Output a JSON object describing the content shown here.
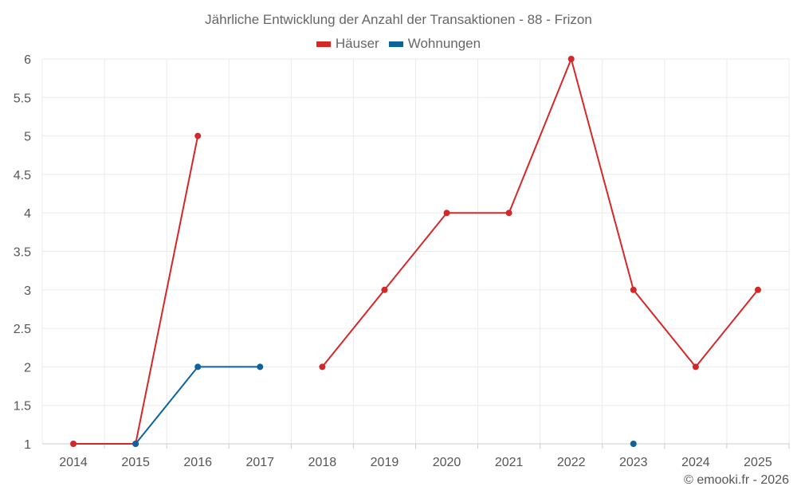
{
  "chart_data": {
    "type": "line",
    "title": "Jährliche Entwicklung der Anzahl der Transaktionen - 88 - Frizon",
    "categories": [
      "2014",
      "2015",
      "2016",
      "2017",
      "2018",
      "2019",
      "2020",
      "2021",
      "2022",
      "2023",
      "2024",
      "2025"
    ],
    "ylim": [
      1,
      6
    ],
    "yticks": [
      "1",
      "1.5",
      "2",
      "2.5",
      "3",
      "3.5",
      "4",
      "4.5",
      "5",
      "5.5",
      "6"
    ],
    "grid": true,
    "legend_position": "top-center",
    "series": [
      {
        "name": "Häuser",
        "color": "#d62728",
        "values": [
          1,
          1,
          5,
          null,
          2,
          3,
          4,
          4,
          6,
          3,
          2,
          3
        ]
      },
      {
        "name": "Wohnungen",
        "color": "#0b64a0",
        "values": [
          null,
          1,
          2,
          2,
          null,
          null,
          null,
          null,
          null,
          1,
          null,
          null
        ]
      }
    ]
  },
  "credit": "© emooki.fr - 2026"
}
